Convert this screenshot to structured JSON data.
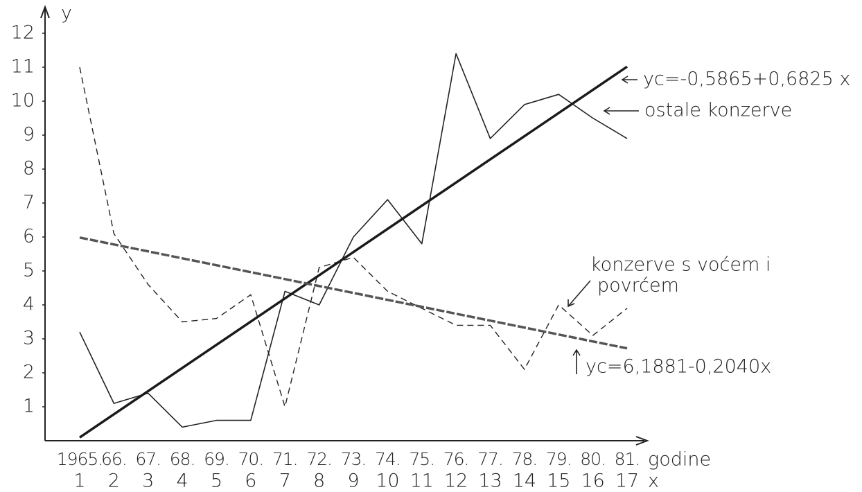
{
  "chart_data": {
    "type": "line",
    "ylabel": "y",
    "xlabel": [
      "godine",
      "x"
    ],
    "categories": [
      "1965.",
      "66.",
      "67.",
      "68.",
      "69.",
      "70.",
      "71.",
      "72.",
      "73.",
      "74.",
      "75.",
      "76.",
      "77.",
      "78.",
      "79.",
      "80.",
      "81."
    ],
    "x": [
      1,
      2,
      3,
      4,
      5,
      6,
      7,
      8,
      9,
      10,
      11,
      12,
      13,
      14,
      15,
      16,
      17
    ],
    "xlim": [
      0,
      17.5
    ],
    "ylim": [
      0,
      12
    ],
    "yticks": [
      1,
      2,
      3,
      4,
      5,
      6,
      7,
      8,
      9,
      10,
      11,
      12
    ],
    "series": [
      {
        "name": [
          "ostale konzerve"
        ],
        "color": "#222222",
        "style": "solid",
        "x": [
          1,
          2,
          3,
          4,
          5,
          6,
          7,
          8,
          9,
          10,
          11,
          12,
          13,
          14,
          15,
          16,
          17
        ],
        "values": [
          3.2,
          1.1,
          1.4,
          0.4,
          0.6,
          0.6,
          4.4,
          4.0,
          6.0,
          7.1,
          5.8,
          11.4,
          8.9,
          9.9,
          10.2,
          9.5,
          8.9
        ]
      },
      {
        "name": [
          "konzerve  s voćem i",
          "povrćem"
        ],
        "color": "#222222",
        "style": "dashed",
        "x": [
          1,
          2,
          3,
          4,
          5,
          6,
          7,
          8,
          9,
          10,
          11,
          12,
          13,
          14,
          15,
          16,
          17
        ],
        "values": [
          11.0,
          6.1,
          4.6,
          3.5,
          3.6,
          4.3,
          1.0,
          5.1,
          5.4,
          4.4,
          3.9,
          3.4,
          3.4,
          2.1,
          4.0,
          3.1,
          3.9
        ]
      },
      {
        "name": [
          "yc=-0,5865+0,6825 x"
        ],
        "color": "#1a1a1a",
        "style": "thick",
        "x": [
          1,
          17
        ],
        "values": [
          0.096,
          11.016
        ]
      },
      {
        "name": [
          "yc=6,1881-0,2040x"
        ],
        "color": "#555555",
        "style": "thick-dashed",
        "x": [
          1,
          17
        ],
        "values": [
          5.9841,
          2.7201
        ]
      }
    ]
  }
}
